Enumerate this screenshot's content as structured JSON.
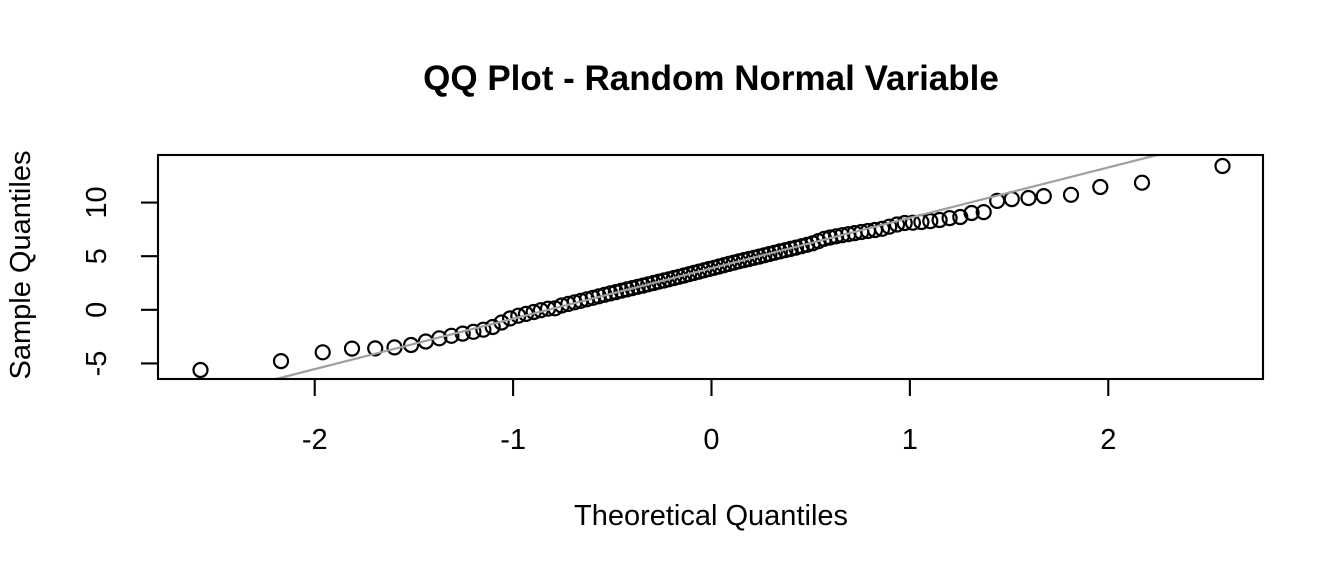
{
  "chart_data": {
    "type": "scatter",
    "title": "QQ Plot - Random Normal Variable",
    "xlabel": "Theoretical Quantiles",
    "ylabel": "Sample Quantiles",
    "xlim": [
      -2.79,
      2.78
    ],
    "ylim": [
      -6.45,
      14.43
    ],
    "x_ticks": [
      -2,
      -1,
      0,
      1,
      2
    ],
    "y_ticks": [
      -5,
      0,
      5,
      10
    ],
    "grid": false,
    "legend": "none",
    "marker": {
      "shape": "open-circle",
      "color": "#000000",
      "radius_px": 7
    },
    "ref_line": {
      "slope": 4.7,
      "intercept": 3.87,
      "color": "#9f9f9f"
    },
    "points": [
      [
        -2.576,
        -5.61
      ],
      [
        -2.17,
        -4.78
      ],
      [
        -1.96,
        -3.96
      ],
      [
        -1.812,
        -3.62
      ],
      [
        -1.695,
        -3.6
      ],
      [
        -1.598,
        -3.5
      ],
      [
        -1.514,
        -3.28
      ],
      [
        -1.44,
        -2.95
      ],
      [
        -1.372,
        -2.66
      ],
      [
        -1.311,
        -2.42
      ],
      [
        -1.254,
        -2.22
      ],
      [
        -1.2,
        -2.05
      ],
      [
        -1.15,
        -1.85
      ],
      [
        -1.103,
        -1.6
      ],
      [
        -1.058,
        -1.18
      ],
      [
        -1.015,
        -0.8
      ],
      [
        -0.974,
        -0.55
      ],
      [
        -0.935,
        -0.38
      ],
      [
        -0.896,
        -0.2
      ],
      [
        -0.86,
        -0.04
      ],
      [
        -0.824,
        0.1
      ],
      [
        -0.789,
        0.14
      ],
      [
        -0.755,
        0.4
      ],
      [
        -0.722,
        0.55
      ],
      [
        -0.69,
        0.7
      ],
      [
        -0.659,
        0.84
      ],
      [
        -0.628,
        0.98
      ],
      [
        -0.598,
        1.12
      ],
      [
        -0.568,
        1.26
      ],
      [
        -0.539,
        1.4
      ],
      [
        -0.51,
        1.53
      ],
      [
        -0.482,
        1.65
      ],
      [
        -0.454,
        1.78
      ],
      [
        -0.426,
        1.9
      ],
      [
        -0.399,
        2.02
      ],
      [
        -0.372,
        2.14
      ],
      [
        -0.345,
        2.26
      ],
      [
        -0.319,
        2.38
      ],
      [
        -0.292,
        2.5
      ],
      [
        -0.266,
        2.62
      ],
      [
        -0.24,
        2.73
      ],
      [
        -0.215,
        2.84
      ],
      [
        -0.189,
        2.96
      ],
      [
        -0.164,
        3.08
      ],
      [
        -0.138,
        3.2
      ],
      [
        -0.113,
        3.32
      ],
      [
        -0.088,
        3.44
      ],
      [
        -0.063,
        3.56
      ],
      [
        -0.038,
        3.68
      ],
      [
        -0.013,
        3.8
      ],
      [
        0.013,
        3.92
      ],
      [
        0.038,
        4.04
      ],
      [
        0.063,
        4.16
      ],
      [
        0.088,
        4.28
      ],
      [
        0.113,
        4.4
      ],
      [
        0.138,
        4.52
      ],
      [
        0.164,
        4.63
      ],
      [
        0.189,
        4.74
      ],
      [
        0.215,
        4.85
      ],
      [
        0.24,
        4.96
      ],
      [
        0.266,
        5.08
      ],
      [
        0.292,
        5.2
      ],
      [
        0.319,
        5.32
      ],
      [
        0.345,
        5.44
      ],
      [
        0.372,
        5.56
      ],
      [
        0.399,
        5.68
      ],
      [
        0.426,
        5.8
      ],
      [
        0.454,
        5.93
      ],
      [
        0.482,
        6.06
      ],
      [
        0.51,
        6.2
      ],
      [
        0.539,
        6.4
      ],
      [
        0.568,
        6.62
      ],
      [
        0.598,
        6.74
      ],
      [
        0.628,
        6.85
      ],
      [
        0.659,
        6.95
      ],
      [
        0.69,
        7.05
      ],
      [
        0.722,
        7.15
      ],
      [
        0.755,
        7.25
      ],
      [
        0.789,
        7.35
      ],
      [
        0.824,
        7.44
      ],
      [
        0.86,
        7.55
      ],
      [
        0.896,
        7.75
      ],
      [
        0.935,
        7.95
      ],
      [
        0.974,
        8.09
      ],
      [
        1.015,
        8.12
      ],
      [
        1.058,
        8.18
      ],
      [
        1.103,
        8.27
      ],
      [
        1.15,
        8.37
      ],
      [
        1.2,
        8.55
      ],
      [
        1.254,
        8.65
      ],
      [
        1.311,
        9.02
      ],
      [
        1.372,
        9.11
      ],
      [
        1.44,
        10.15
      ],
      [
        1.514,
        10.32
      ],
      [
        1.598,
        10.42
      ],
      [
        1.675,
        10.6
      ],
      [
        1.812,
        10.72
      ],
      [
        1.96,
        11.45
      ],
      [
        2.17,
        11.85
      ],
      [
        2.576,
        13.4
      ]
    ]
  },
  "colors": {
    "background": "#ffffff",
    "axis": "#000000",
    "text": "#000000",
    "reference_line": "#9f9f9f"
  }
}
